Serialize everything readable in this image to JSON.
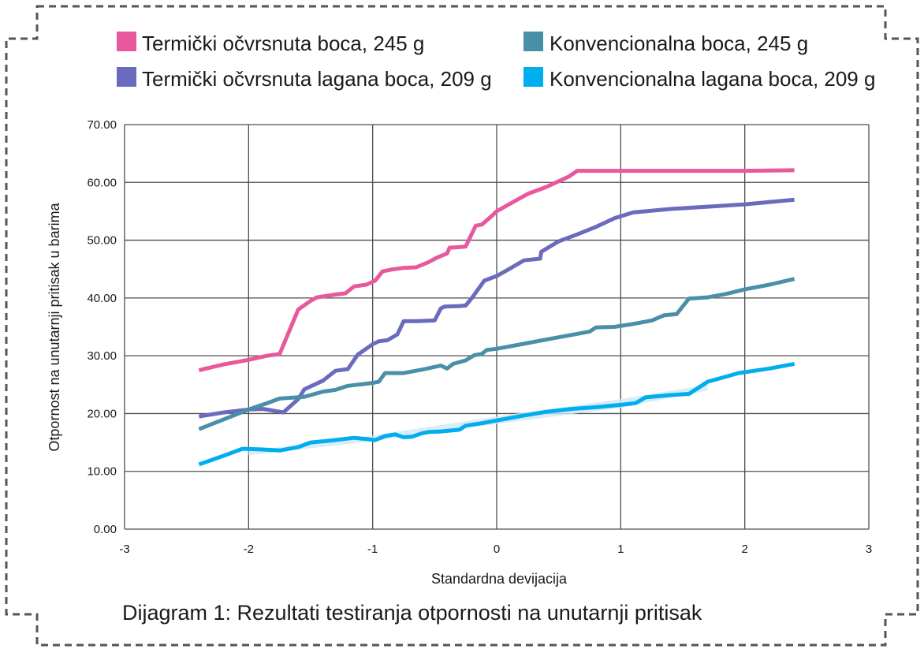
{
  "caption": "Dijagram 1: Rezultati testiranja otpornosti na unutarnji pritisak",
  "chart_data": {
    "type": "line",
    "title": "",
    "xlabel": "Standardna devijacija",
    "ylabel": "Otpornost na unutarnji pritisak u barima",
    "xlim": [
      -3,
      3
    ],
    "ylim": [
      0,
      70
    ],
    "x_ticks": [
      "-3",
      "-2",
      "-1",
      "0",
      "1",
      "2",
      "3"
    ],
    "y_ticks": [
      "0.00",
      "10.00",
      "20.00",
      "30.00",
      "40.00",
      "50.00",
      "60.00",
      "70.00"
    ],
    "grid": true,
    "legend_position": "top",
    "series": [
      {
        "name": "Termički očvrsnuta boca, 245 g",
        "color": "#e8589c",
        "points": [
          [
            -2.4,
            27.5
          ],
          [
            -2.2,
            28.5
          ],
          [
            -2.0,
            29.3
          ],
          [
            -1.85,
            30.0
          ],
          [
            -1.75,
            30.3
          ],
          [
            -1.6,
            38.0
          ],
          [
            -1.5,
            39.5
          ],
          [
            -1.45,
            40.1
          ],
          [
            -1.3,
            40.6
          ],
          [
            -1.22,
            40.8
          ],
          [
            -1.15,
            42.0
          ],
          [
            -1.05,
            42.3
          ],
          [
            -0.98,
            43.0
          ],
          [
            -0.92,
            44.6
          ],
          [
            -0.85,
            44.9
          ],
          [
            -0.75,
            45.2
          ],
          [
            -0.65,
            45.3
          ],
          [
            -0.55,
            46.2
          ],
          [
            -0.48,
            47.0
          ],
          [
            -0.4,
            47.7
          ],
          [
            -0.38,
            48.7
          ],
          [
            -0.3,
            48.8
          ],
          [
            -0.25,
            48.9
          ],
          [
            -0.17,
            52.5
          ],
          [
            -0.12,
            52.7
          ],
          [
            -0.05,
            54.0
          ],
          [
            0.0,
            55.0
          ],
          [
            0.1,
            56.2
          ],
          [
            0.25,
            58.0
          ],
          [
            0.4,
            59.2
          ],
          [
            0.5,
            60.2
          ],
          [
            0.58,
            61.0
          ],
          [
            0.65,
            62.0
          ],
          [
            1.0,
            62.0
          ],
          [
            1.5,
            62.0
          ],
          [
            2.0,
            62.0
          ],
          [
            2.4,
            62.1
          ]
        ]
      },
      {
        "name": "Termički očvrsnuta lagana boca, 209 g",
        "color": "#6b6bbd",
        "points": [
          [
            -2.4,
            19.5
          ],
          [
            -2.2,
            20.2
          ],
          [
            -2.0,
            20.7
          ],
          [
            -1.88,
            20.8
          ],
          [
            -1.72,
            20.2
          ],
          [
            -1.6,
            22.5
          ],
          [
            -1.55,
            24.2
          ],
          [
            -1.45,
            25.2
          ],
          [
            -1.4,
            25.7
          ],
          [
            -1.3,
            27.4
          ],
          [
            -1.2,
            27.7
          ],
          [
            -1.12,
            30.2
          ],
          [
            -1.0,
            32.0
          ],
          [
            -0.95,
            32.5
          ],
          [
            -0.88,
            32.7
          ],
          [
            -0.8,
            33.7
          ],
          [
            -0.75,
            36.0
          ],
          [
            -0.65,
            36.0
          ],
          [
            -0.5,
            36.1
          ],
          [
            -0.45,
            38.2
          ],
          [
            -0.42,
            38.5
          ],
          [
            -0.3,
            38.6
          ],
          [
            -0.25,
            38.7
          ],
          [
            -0.2,
            40.0
          ],
          [
            -0.1,
            43.0
          ],
          [
            0.0,
            43.8
          ],
          [
            0.1,
            45.0
          ],
          [
            0.22,
            46.5
          ],
          [
            0.35,
            46.8
          ],
          [
            0.36,
            48.0
          ],
          [
            0.5,
            49.8
          ],
          [
            0.65,
            51.0
          ],
          [
            0.8,
            52.3
          ],
          [
            0.95,
            53.8
          ],
          [
            1.1,
            54.8
          ],
          [
            1.4,
            55.4
          ],
          [
            1.7,
            55.8
          ],
          [
            2.0,
            56.2
          ],
          [
            2.4,
            57.0
          ]
        ]
      },
      {
        "name": "Konvencionalna boca, 245 g",
        "color": "#4a8fa8",
        "points": [
          [
            -2.4,
            17.3
          ],
          [
            -2.2,
            19.0
          ],
          [
            -2.0,
            20.7
          ],
          [
            -1.85,
            21.8
          ],
          [
            -1.75,
            22.6
          ],
          [
            -1.55,
            22.9
          ],
          [
            -1.4,
            23.8
          ],
          [
            -1.3,
            24.1
          ],
          [
            -1.2,
            24.8
          ],
          [
            -1.0,
            25.3
          ],
          [
            -0.95,
            25.5
          ],
          [
            -0.9,
            27.0
          ],
          [
            -0.75,
            27.0
          ],
          [
            -0.6,
            27.6
          ],
          [
            -0.45,
            28.3
          ],
          [
            -0.4,
            27.8
          ],
          [
            -0.35,
            28.6
          ],
          [
            -0.25,
            29.2
          ],
          [
            -0.18,
            30.1
          ],
          [
            -0.12,
            30.3
          ],
          [
            -0.08,
            31.0
          ],
          [
            0.0,
            31.2
          ],
          [
            0.2,
            32.0
          ],
          [
            0.4,
            32.8
          ],
          [
            0.6,
            33.6
          ],
          [
            0.75,
            34.2
          ],
          [
            0.8,
            34.9
          ],
          [
            0.95,
            35.0
          ],
          [
            1.1,
            35.5
          ],
          [
            1.25,
            36.1
          ],
          [
            1.35,
            37.0
          ],
          [
            1.45,
            37.2
          ],
          [
            1.55,
            39.9
          ],
          [
            1.7,
            40.1
          ],
          [
            1.85,
            40.7
          ],
          [
            2.0,
            41.5
          ],
          [
            2.2,
            42.3
          ],
          [
            2.4,
            43.3
          ]
        ]
      },
      {
        "name": "Konvencionalna lagana boca, 209 g",
        "color": "#00aeef",
        "points": [
          [
            -2.4,
            11.2
          ],
          [
            -2.2,
            12.7
          ],
          [
            -2.05,
            13.9
          ],
          [
            -1.9,
            13.8
          ],
          [
            -1.75,
            13.6
          ],
          [
            -1.6,
            14.2
          ],
          [
            -1.5,
            15.0
          ],
          [
            -1.35,
            15.3
          ],
          [
            -1.15,
            15.8
          ],
          [
            -1.05,
            15.6
          ],
          [
            -0.98,
            15.4
          ],
          [
            -0.9,
            16.1
          ],
          [
            -0.82,
            16.4
          ],
          [
            -0.75,
            15.9
          ],
          [
            -0.68,
            16.0
          ],
          [
            -0.6,
            16.6
          ],
          [
            -0.55,
            16.8
          ],
          [
            -0.45,
            16.9
          ],
          [
            -0.3,
            17.2
          ],
          [
            -0.25,
            17.9
          ],
          [
            -0.1,
            18.4
          ],
          [
            0.0,
            18.8
          ],
          [
            0.2,
            19.6
          ],
          [
            0.4,
            20.3
          ],
          [
            0.6,
            20.8
          ],
          [
            0.8,
            21.1
          ],
          [
            1.0,
            21.5
          ],
          [
            1.12,
            21.8
          ],
          [
            1.2,
            22.8
          ],
          [
            1.4,
            23.2
          ],
          [
            1.55,
            23.4
          ],
          [
            1.7,
            25.5
          ],
          [
            1.95,
            27.0
          ],
          [
            2.2,
            27.8
          ],
          [
            2.4,
            28.6
          ]
        ]
      }
    ],
    "band": {
      "color": "#cfe7f5",
      "upper": [
        [
          -2.0,
          13.5
        ],
        [
          -1.0,
          16.2
        ],
        [
          0.0,
          19.5
        ],
        [
          1.0,
          22.5
        ],
        [
          1.7,
          25.0
        ]
      ],
      "lower": [
        [
          1.7,
          24.0
        ],
        [
          1.0,
          21.0
        ],
        [
          0.0,
          18.2
        ],
        [
          -1.0,
          15.2
        ],
        [
          -2.0,
          12.8
        ]
      ]
    }
  }
}
